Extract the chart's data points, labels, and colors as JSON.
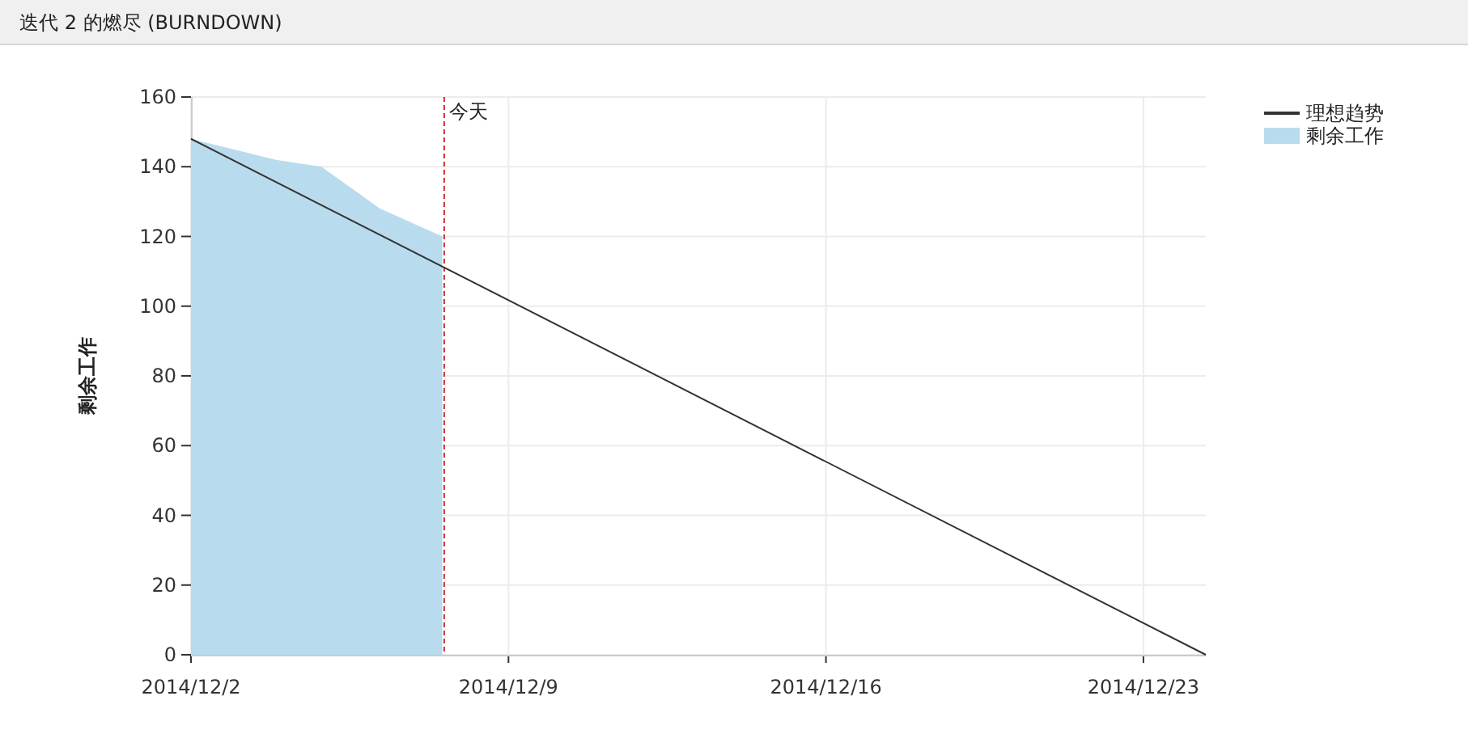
{
  "chart_data": {
    "type": "line",
    "title": "迭代 2 的燃尽 (BURNDOWN)",
    "ylabel": "剩余工作",
    "xlim": [
      "2014-12-02",
      "2014-12-24T09:00"
    ],
    "xticks": [
      {
        "value": "2014-12-02",
        "label": "2014/12/2"
      },
      {
        "value": "2014-12-09",
        "label": "2014/12/9"
      },
      {
        "value": "2014-12-16",
        "label": "2014/12/16"
      },
      {
        "value": "2014-12-23",
        "label": "2014/12/23"
      }
    ],
    "ylim": [
      0,
      160
    ],
    "yticks": [
      0,
      20,
      40,
      60,
      80,
      100,
      120,
      140,
      160
    ],
    "grid": true,
    "legend": "top right",
    "series": [
      {
        "name": "理想趋势",
        "color": "#333333",
        "x": [
          "2014-12-02",
          "2014-12-24T09:00"
        ],
        "values": [
          148,
          0
        ]
      },
      {
        "name": "剩余工作",
        "type": "area",
        "color": "#b8dcee",
        "x": [
          "2014-12-02",
          "2014-12-03T21:00",
          "2014-12-04T21:00",
          "2014-12-06T04:00",
          "2014-12-07T13:00"
        ],
        "values": [
          148,
          142,
          140,
          128,
          120
        ]
      }
    ],
    "ref_lines": [
      {
        "axis": "x",
        "value": "2014-12-07T14:00",
        "label": "今天",
        "color": "#cc3333",
        "line_style": "dashed"
      }
    ]
  }
}
